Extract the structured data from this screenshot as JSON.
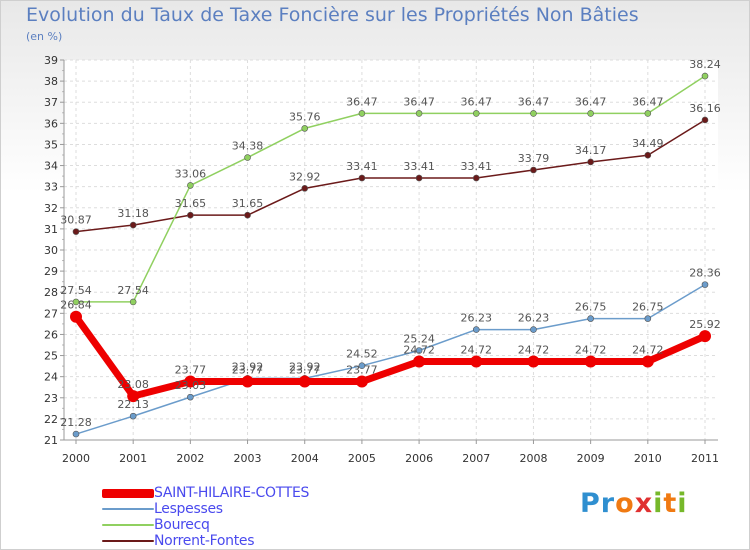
{
  "title": "Evolution du Taux de Taxe Foncière sur les Propriétés Non Bâties",
  "subtitle": "(en %)",
  "logo": {
    "text": "Proxiti",
    "letters": [
      "P",
      "r",
      "o",
      "x",
      "i",
      "t",
      "i"
    ],
    "colors": [
      "#2f8fd0",
      "#2f8fd0",
      "#f07a12",
      "#e03030",
      "#76b82a",
      "#f07a12",
      "#76b82a"
    ]
  },
  "chart_data": {
    "type": "line",
    "title": "Evolution du Taux de Taxe Foncière sur les Propriétés Non Bâties",
    "ylabel": "(en %)",
    "xlabel": "",
    "x": [
      "2000",
      "2001",
      "2002",
      "2003",
      "2004",
      "2005",
      "2006",
      "2007",
      "2008",
      "2009",
      "2010",
      "2011"
    ],
    "ylim": [
      21,
      39
    ],
    "yticks": [
      "21",
      "22",
      "23",
      "24",
      "25",
      "26",
      "27",
      "28",
      "29",
      "30",
      "31",
      "32",
      "33",
      "34",
      "35",
      "36",
      "37",
      "38",
      "39"
    ],
    "grid": true,
    "series": [
      {
        "name": "Norrent-Fontes",
        "color": "#6b1a1a",
        "values": [
          30.87,
          31.18,
          31.65,
          31.65,
          32.92,
          33.41,
          33.41,
          33.41,
          33.79,
          34.17,
          34.49,
          36.16
        ],
        "labels": [
          "30.87",
          "31.18",
          "31.65",
          "31.65",
          "32.92",
          "33.41",
          "33.41",
          "33.41",
          "33.79",
          "34.17",
          "34.49",
          "36.16"
        ]
      },
      {
        "name": "Bourecq",
        "color": "#90d060",
        "values": [
          27.54,
          27.54,
          33.06,
          34.38,
          35.76,
          36.47,
          36.47,
          36.47,
          36.47,
          36.47,
          36.47,
          38.24
        ],
        "labels": [
          "27.54",
          "27.54",
          "33.06",
          "34.38",
          "35.76",
          "36.47",
          "36.47",
          "36.47",
          "36.47",
          "36.47",
          "36.47",
          "38.24"
        ]
      },
      {
        "name": "Lespesses",
        "color": "#6b9ccb",
        "values": [
          21.28,
          22.13,
          23.03,
          23.92,
          23.92,
          24.52,
          25.24,
          26.23,
          26.23,
          26.75,
          26.75,
          28.36
        ],
        "labels": [
          "21.28",
          "22.13",
          "23.03",
          "23.92",
          "23.92",
          "24.52",
          "25.24",
          "26.23",
          "26.23",
          "26.75",
          "26.75",
          "28.36"
        ]
      },
      {
        "name": "SAINT-HILAIRE-COTTES",
        "color": "#ee0000",
        "values": [
          26.84,
          23.08,
          23.77,
          23.77,
          23.77,
          23.77,
          24.72,
          24.72,
          24.72,
          24.72,
          24.72,
          25.92
        ],
        "labels": [
          "26.84",
          "23.08",
          "23.77",
          "23.77",
          "23.77",
          "23.77",
          "24.72",
          "24.72",
          "24.72",
          "24.72",
          "24.72",
          "25.92"
        ]
      }
    ],
    "legend": [
      "SAINT-HILAIRE-COTTES",
      "Lespesses",
      "Bourecq",
      "Norrent-Fontes"
    ],
    "legend_colors": [
      "#ee0000",
      "#6b9ccb",
      "#90d060",
      "#6b1a1a"
    ]
  }
}
